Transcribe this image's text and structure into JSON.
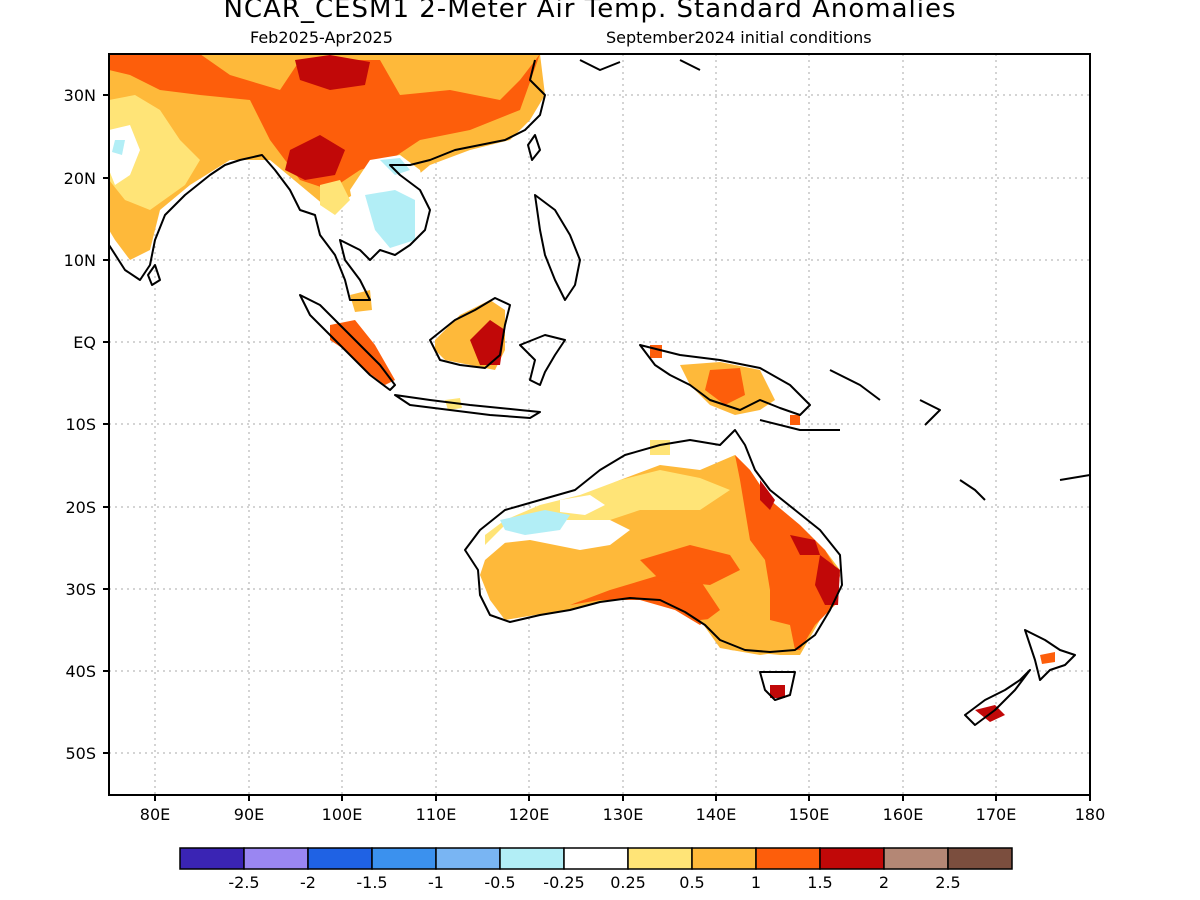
{
  "title": "NCAR_CESM1 2-Meter Air Temp. Standard Anomalies",
  "subtitle_left": "Feb2025-Apr2025",
  "subtitle_right": "September2024 initial conditions",
  "lat_labels": [
    "30N",
    "20N",
    "10N",
    "EQ",
    "10S",
    "20S",
    "30S",
    "40S",
    "50S"
  ],
  "lon_labels": [
    "80E",
    "90E",
    "100E",
    "110E",
    "120E",
    "130E",
    "140E",
    "150E",
    "160E",
    "170E",
    "180"
  ],
  "colorbar": {
    "colors": [
      "#3a24b4",
      "#9a86f2",
      "#1f62e4",
      "#3b91ee",
      "#79b5f3",
      "#b2eef6",
      "#ffffff",
      "#ffe477",
      "#feb93a",
      "#fd5e0b",
      "#c10808",
      "#b48775",
      "#7b4e3e"
    ],
    "labels": [
      "-2.5",
      "-2",
      "-1.5",
      "-1",
      "-0.5",
      "-0.25",
      "0.25",
      "0.5",
      "1",
      "1.5",
      "2",
      "2.5"
    ]
  }
}
